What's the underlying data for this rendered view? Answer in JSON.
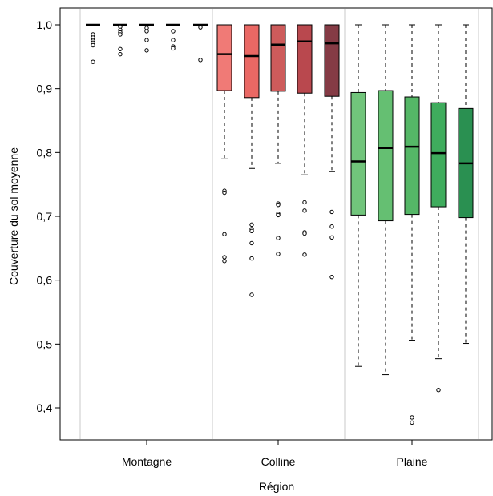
{
  "chart_data": {
    "type": "boxplot",
    "title": "",
    "xlabel": "Région",
    "ylabel": "Couverture du sol moyenne",
    "ylim": [
      0.36,
      1.02
    ],
    "yticks": [
      0.4,
      0.5,
      0.6,
      0.7,
      0.8,
      0.9,
      1.0
    ],
    "ytick_labels": [
      "0,4",
      "0,5",
      "0,6",
      "0,7",
      "0,8",
      "0,9",
      "1,0"
    ],
    "grid": false,
    "legend": "none",
    "categories": [
      "Montagne",
      "Colline",
      "Plaine"
    ],
    "groups": [
      {
        "name": "Montagne",
        "boxes": [
          {
            "color": "#ffffff",
            "whisker_low": 1.0,
            "q1": 1.0,
            "median": 1.0,
            "q3": 1.0,
            "whisker_high": 1.0,
            "outliers": [
              0.985,
              0.98,
              0.975,
              0.972,
              0.968,
              0.942
            ]
          },
          {
            "color": "#ffffff",
            "whisker_low": 1.0,
            "q1": 1.0,
            "median": 1.0,
            "q3": 1.0,
            "whisker_high": 1.0,
            "outliers": [
              0.997,
              0.992,
              0.988,
              0.985,
              0.962,
              0.954
            ]
          },
          {
            "color": "#ffffff",
            "whisker_low": 1.0,
            "q1": 1.0,
            "median": 1.0,
            "q3": 1.0,
            "whisker_high": 1.0,
            "outliers": [
              0.995,
              0.99,
              0.976,
              0.96
            ]
          },
          {
            "color": "#ffffff",
            "whisker_low": 1.0,
            "q1": 1.0,
            "median": 1.0,
            "q3": 1.0,
            "whisker_high": 1.0,
            "outliers": [
              0.99,
              0.976,
              0.966,
              0.963
            ]
          },
          {
            "color": "#ffffff",
            "whisker_low": 1.0,
            "q1": 1.0,
            "median": 1.0,
            "q3": 1.0,
            "whisker_high": 1.0,
            "outliers": [
              0.996,
              0.945
            ]
          }
        ]
      },
      {
        "name": "Colline",
        "boxes": [
          {
            "color": "#f07a76",
            "whisker_low": 0.79,
            "q1": 0.897,
            "median": 0.954,
            "q3": 1.0,
            "whisker_high": 1.0,
            "outliers": [
              0.74,
              0.737,
              0.672,
              0.636,
              0.63
            ]
          },
          {
            "color": "#ea6864",
            "whisker_low": 0.775,
            "q1": 0.886,
            "median": 0.951,
            "q3": 1.0,
            "whisker_high": 1.0,
            "outliers": [
              0.687,
              0.68,
              0.677,
              0.658,
              0.634,
              0.577
            ]
          },
          {
            "color": "#cd5b5b",
            "whisker_low": 0.783,
            "q1": 0.896,
            "median": 0.969,
            "q3": 1.0,
            "whisker_high": 1.0,
            "outliers": [
              0.72,
              0.718,
              0.704,
              0.702,
              0.666,
              0.641
            ]
          },
          {
            "color": "#b9484e",
            "whisker_low": 0.765,
            "q1": 0.893,
            "median": 0.974,
            "q3": 1.0,
            "whisker_high": 1.0,
            "outliers": [
              0.722,
              0.709,
              0.675,
              0.673,
              0.64
            ]
          },
          {
            "color": "#853b45",
            "whisker_low": 0.77,
            "q1": 0.888,
            "median": 0.971,
            "q3": 1.0,
            "whisker_high": 1.0,
            "outliers": [
              0.707,
              0.684,
              0.667,
              0.605
            ]
          }
        ]
      },
      {
        "name": "Plaine",
        "boxes": [
          {
            "color": "#71c57b",
            "whisker_low": 0.465,
            "q1": 0.702,
            "median": 0.786,
            "q3": 0.894,
            "whisker_high": 1.0,
            "outliers": []
          },
          {
            "color": "#65bf72",
            "whisker_low": 0.452,
            "q1": 0.693,
            "median": 0.807,
            "q3": 0.897,
            "whisker_high": 1.0,
            "outliers": []
          },
          {
            "color": "#55b767",
            "whisker_low": 0.506,
            "q1": 0.703,
            "median": 0.809,
            "q3": 0.887,
            "whisker_high": 1.0,
            "outliers": [
              0.385,
              0.377
            ]
          },
          {
            "color": "#3fac5d",
            "whisker_low": 0.477,
            "q1": 0.715,
            "median": 0.799,
            "q3": 0.878,
            "whisker_high": 1.0,
            "outliers": [
              0.428
            ]
          },
          {
            "color": "#2a9051",
            "whisker_low": 0.501,
            "q1": 0.698,
            "median": 0.783,
            "q3": 0.869,
            "whisker_high": 1.0,
            "outliers": []
          }
        ]
      }
    ]
  }
}
